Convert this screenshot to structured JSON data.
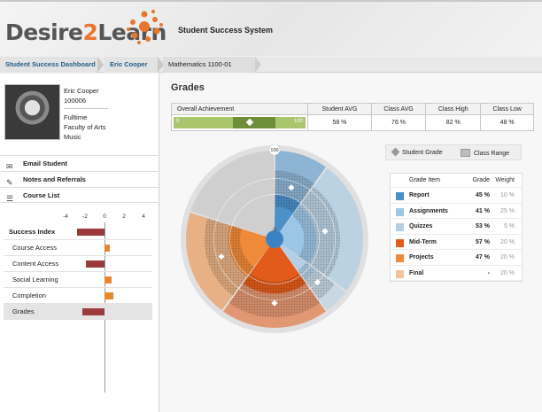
{
  "header": {
    "logo_main": "Desire",
    "logo_two": "2",
    "logo_rest": "Learn",
    "system_title": "Student Success System"
  },
  "breadcrumb": [
    "Student Success Dashboard",
    "Eric Cooper",
    "Mathematics 1100-01"
  ],
  "student": {
    "name": "Eric Cooper",
    "id": "100006",
    "status": "Fulltime",
    "faculty": "Faculty of Arts",
    "program": "Music"
  },
  "actions": [
    {
      "label": "Email Student",
      "icon": "envelope-icon"
    },
    {
      "label": "Notes and Referrals",
      "icon": "pencil-icon"
    },
    {
      "label": "Course List",
      "icon": "list-icon"
    }
  ],
  "success_index": {
    "axis_ticks": [
      "-4",
      "-2",
      "0",
      "2",
      "4"
    ],
    "rows": [
      {
        "label": "Success Index",
        "value": -2.8,
        "color": "#9b3b3b"
      },
      {
        "label": "Course Access",
        "value": 0.5,
        "color": "#e8882e"
      },
      {
        "label": "Content Access",
        "value": -1.9,
        "color": "#9b3b3b"
      },
      {
        "label": "Social Learning",
        "value": 0.7,
        "color": "#e8882e"
      },
      {
        "label": "Completion",
        "value": 0.9,
        "color": "#e8882e"
      },
      {
        "label": "Grades",
        "value": -2.3,
        "color": "#9b3b3b"
      }
    ]
  },
  "grades": {
    "title": "Grades",
    "summary": {
      "headers": [
        "Overall Achievement",
        "Student AVG",
        "Class AVG",
        "Class High",
        "Class Low"
      ],
      "bar_label_min": "0",
      "bar_label_max": "100",
      "values": [
        "58 %",
        "76 %",
        "82 %",
        "48 %"
      ]
    },
    "chart_center_top": "100",
    "chart_center": "0",
    "legend": {
      "student_grade": "Student Grade",
      "class_range": "Class Range"
    },
    "table_headers": [
      "Grade Item",
      "Grade",
      "Weight"
    ],
    "items": [
      {
        "name": "Report",
        "grade": "45 %",
        "weight": "10 %",
        "color": "#4a90c9"
      },
      {
        "name": "Assignments",
        "grade": "41 %",
        "weight": "25 %",
        "color": "#9cc6e6"
      },
      {
        "name": "Quizzes",
        "grade": "53 %",
        "weight": "5 %",
        "color": "#b3cfe6"
      },
      {
        "name": "Mid-Term",
        "grade": "57 %",
        "weight": "20 %",
        "color": "#e35b1a"
      },
      {
        "name": "Projects",
        "grade": "47 %",
        "weight": "20 %",
        "color": "#ef8a3a"
      },
      {
        "name": "Final",
        "grade": "-",
        "weight": "20 %",
        "color": "#f4c29d"
      }
    ]
  }
}
